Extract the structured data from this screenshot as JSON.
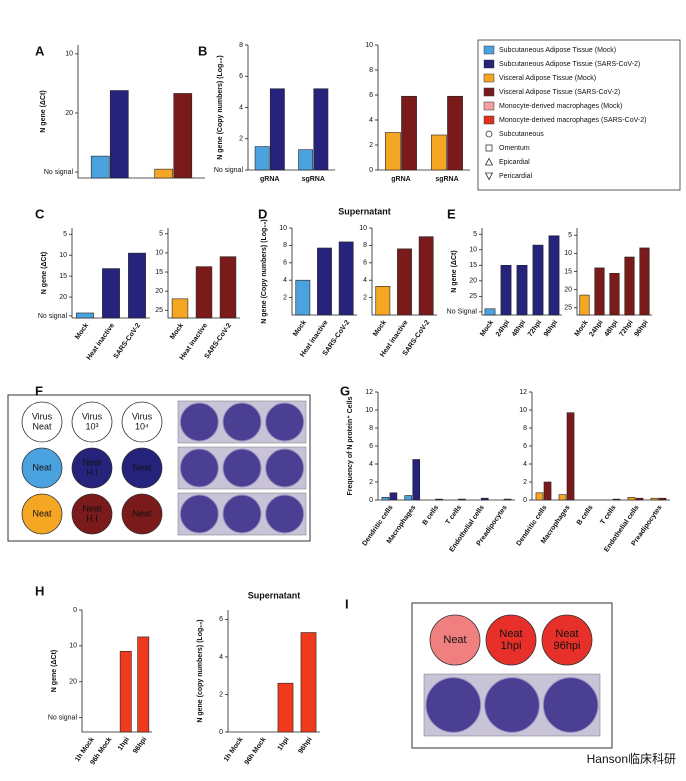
{
  "panel_letters": [
    "A",
    "B",
    "C",
    "D",
    "E",
    "F",
    "G",
    "H",
    "I"
  ],
  "legend": [
    {
      "label": "Subcutaneous Adipose Tissue (Mock)",
      "color": "#4aa3df"
    },
    {
      "label": "Subcutaneous Adipose Tissue (SARS-CoV-2)",
      "color": "#25237c"
    },
    {
      "label": "Visceral Adipose Tissue (Mock)",
      "color": "#f5a623"
    },
    {
      "label": "Visceral Adipose Tissue (SARS-CoV-2)",
      "color": "#7a1a1a"
    },
    {
      "label": "Monocyte-derived macrophages (Mock)",
      "color": "#f2a0a0"
    },
    {
      "label": "Monocyte-derived macrophages (SARS-CoV-2)",
      "color": "#e0301e"
    },
    {
      "label": "Subcutaneous",
      "marker": "circle"
    },
    {
      "label": "Omentum",
      "marker": "square"
    },
    {
      "label": "Epicardial",
      "marker": "triangle"
    },
    {
      "label": "Pericardial",
      "marker": "down-triangle"
    }
  ],
  "chart_data": [
    {
      "type": "bar",
      "y_label": "N gene (ΔCt)",
      "categories": [
        null,
        null
      ],
      "ylim": [
        31,
        8.5
      ],
      "yticks": [
        10,
        20,
        {
          "value": 30,
          "label": "No signal"
        }
      ],
      "series": [
        {
          "colors": [
            "#4aa3df",
            "#f5a623"
          ],
          "values": [
            27.3,
            29.5
          ]
        },
        {
          "colors": [
            "#25237c",
            "#7a1a1a"
          ],
          "values": [
            16.2,
            16.7
          ]
        }
      ]
    },
    {
      "type": "bar",
      "y_label": "N gene (Copy numbers) (Log₁₀)",
      "categories": [
        "gRNA",
        "sgRNA"
      ],
      "ylim": [
        0,
        8
      ],
      "yticks": [
        {
          "value": 0,
          "label": "No signal"
        },
        2,
        4,
        6,
        8
      ],
      "series": [
        {
          "color": "#4aa3df",
          "values": [
            1.5,
            1.3
          ]
        },
        {
          "color": "#25237c",
          "values": [
            5.2,
            5.2
          ]
        }
      ]
    },
    {
      "type": "bar",
      "categories": [
        "gRNA",
        "sgRNA"
      ],
      "ylim": [
        0,
        10
      ],
      "yticks": [
        0,
        2,
        4,
        6,
        8,
        10
      ],
      "series": [
        {
          "color": "#f5a623",
          "values": [
            3,
            2.8
          ]
        },
        {
          "color": "#7a1a1a",
          "values": [
            5.9,
            5.9
          ]
        }
      ]
    },
    {
      "type": "bar",
      "y_label": "N gene (ΔCt)",
      "categories": [
        "Mock",
        "Heat inactive",
        "SARS-CoV-2"
      ],
      "ylim": [
        25,
        3.5
      ],
      "yticks": [
        5,
        10,
        15,
        20,
        {
          "value": 24.5,
          "label": "No signal"
        }
      ],
      "series": [
        {
          "colors": [
            "#4aa3df",
            "#25237c",
            "#25237c"
          ],
          "values": [
            23.8,
            13.2,
            9.5
          ]
        }
      ]
    },
    {
      "type": "bar",
      "categories": [
        "Mock",
        "Heat inactive",
        "SARS-CoV-2"
      ],
      "ylim": [
        27,
        3.5
      ],
      "yticks": [
        5,
        10,
        15,
        20,
        25
      ],
      "series": [
        {
          "colors": [
            "#f5a623",
            "#7a1a1a",
            "#7a1a1a"
          ],
          "values": [
            22,
            13.6,
            11
          ]
        }
      ]
    },
    {
      "type": "bar",
      "title": "Supernatant",
      "y_label": "N gene (Copy numbers) (Log₁₀)",
      "categories": [
        "Mock",
        "Heat inactive",
        "SARS-CoV-2"
      ],
      "ylim": [
        0,
        10
      ],
      "yticks": [
        2,
        4,
        6,
        8,
        10
      ],
      "series": [
        {
          "colors": [
            "#4aa3df",
            "#25237c",
            "#25237c"
          ],
          "values": [
            4,
            7.7,
            8.4
          ]
        }
      ]
    },
    {
      "type": "bar",
      "categories": [
        "Mock",
        "Heat inactive",
        "SARS-CoV-2"
      ],
      "ylim": [
        0,
        10
      ],
      "yticks": [
        2,
        4,
        6,
        8,
        10
      ],
      "series": [
        {
          "colors": [
            "#f5a623",
            "#7a1a1a",
            "#7a1a1a"
          ],
          "values": [
            3.3,
            7.6,
            9
          ]
        }
      ]
    },
    {
      "type": "bar",
      "y_label": "N gene (ΔCt)",
      "categories": [
        "Mock",
        "24hpi",
        "48hpi",
        "72hpi",
        "96hpi"
      ],
      "ylim": [
        31,
        3
      ],
      "yticks": [
        5,
        10,
        15,
        20,
        25,
        {
          "value": 30,
          "label": "No Signal"
        }
      ],
      "series": [
        {
          "colors": [
            "#4aa3df",
            "#25237c",
            "#25237c",
            "#25237c",
            "#25237c"
          ],
          "values": [
            29,
            15,
            15,
            8.5,
            5.5
          ]
        }
      ]
    },
    {
      "type": "bar",
      "categories": [
        "Mock",
        "24hpi",
        "48hpi",
        "72hpi",
        "96hpi"
      ],
      "ylim": [
        27,
        3
      ],
      "yticks": [
        5,
        10,
        15,
        20,
        25
      ],
      "series": [
        {
          "colors": [
            "#f5a623",
            "#7a1a1a",
            "#7a1a1a",
            "#7a1a1a",
            "#7a1a1a"
          ],
          "values": [
            21.5,
            14,
            15.5,
            11,
            8.5
          ]
        }
      ]
    },
    {
      "type": "bar",
      "y_label": "Frequency of N protein⁺ Cells",
      "categories": [
        "Dendritic cells",
        "Macrophages",
        "B cells",
        "T cells",
        "Endothelial cells",
        "Preadipocytes"
      ],
      "ylim": [
        0,
        12
      ],
      "yticks": [
        0,
        2,
        4,
        6,
        8,
        10,
        12
      ],
      "series": [
        {
          "color": "#4aa3df",
          "values": [
            0.3,
            0.5,
            0,
            0,
            0,
            0
          ]
        },
        {
          "color": "#25237c",
          "values": [
            0.8,
            4.5,
            0.1,
            0.1,
            0.2,
            0.1
          ]
        }
      ]
    },
    {
      "type": "bar",
      "categories": [
        "Dendritic cells",
        "Macrophages",
        "B cells",
        "T cells",
        "Endothelial cells",
        "Preadipocytes"
      ],
      "ylim": [
        0,
        12
      ],
      "yticks": [
        0,
        2,
        4,
        6,
        8,
        10,
        12
      ],
      "series": [
        {
          "color": "#f5a623",
          "values": [
            0.8,
            0.6,
            0,
            0,
            0.3,
            0.2
          ]
        },
        {
          "color": "#7a1a1a",
          "values": [
            2,
            9.7,
            0,
            0.1,
            0.2,
            0.2
          ]
        }
      ]
    },
    {
      "type": "bar",
      "y_label": "N gene (ΔCt)",
      "categories": [
        "1h Mock",
        "96h Mock",
        "1hpi",
        "96hpi"
      ],
      "ylim": [
        34,
        0
      ],
      "yticks": [
        0,
        10,
        20,
        {
          "value": 30,
          "label": "No signal"
        }
      ],
      "series": [
        {
          "color": "#f03a1e",
          "values": [
            null,
            null,
            11.5,
            7.5
          ]
        }
      ]
    },
    {
      "type": "bar",
      "title": "Supernatant",
      "y_label": "N gene (copy numbers) (Log₁₀)",
      "categories": [
        "1h Mock",
        "96h Mock",
        "1hpi",
        "96hpi"
      ],
      "ylim": [
        0,
        6.5
      ],
      "yticks": [
        0,
        2,
        4,
        6
      ],
      "series": [
        {
          "color": "#f03a1e",
          "values": [
            null,
            null,
            2.6,
            5.3
          ]
        }
      ]
    }
  ],
  "wells_F": [
    [
      [
        "Virus",
        "Neat"
      ],
      [
        "Virus",
        "10³"
      ],
      [
        "Virus",
        "10⁴"
      ]
    ],
    [
      [
        "Neat"
      ],
      [
        "Neat",
        "H.I"
      ],
      [
        "Neat"
      ]
    ],
    [
      [
        "Neat"
      ],
      [
        "Neat",
        "H.I"
      ],
      [
        "Neat"
      ]
    ]
  ],
  "wells_I": [
    [
      "Neat"
    ],
    [
      "Neat",
      "1hpi"
    ],
    [
      "Neat",
      "96hpi"
    ]
  ],
  "watermark": "Hanson临床科研"
}
